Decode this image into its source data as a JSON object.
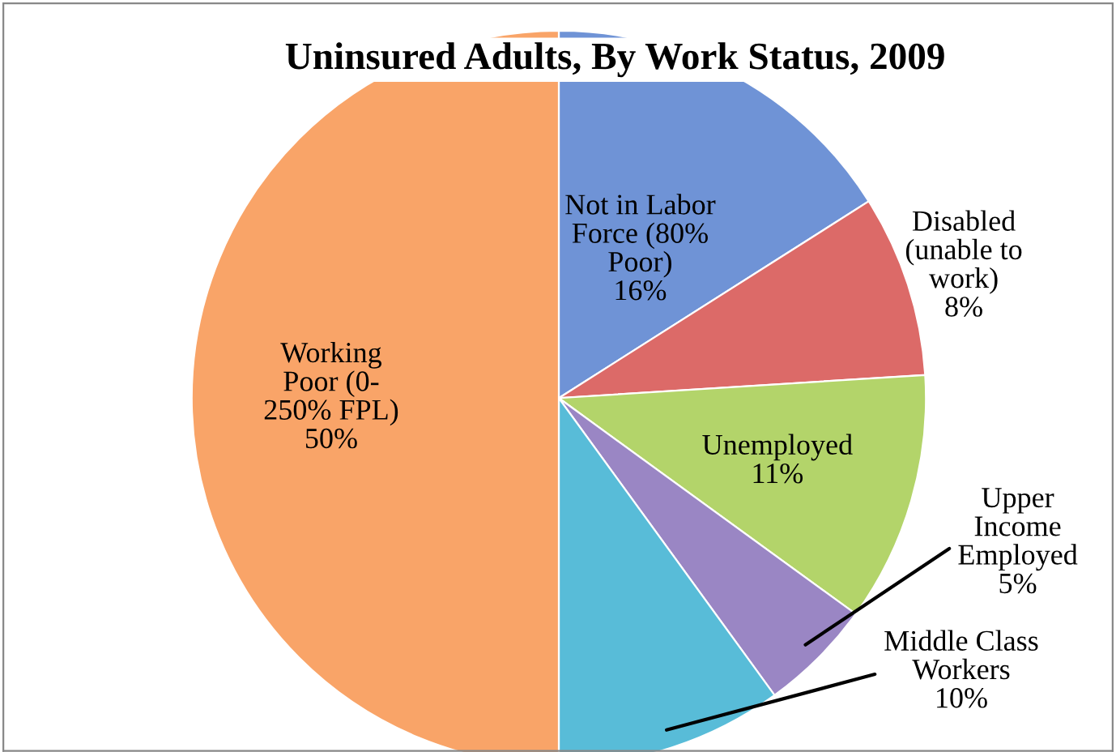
{
  "chart_data": {
    "type": "pie",
    "title": "Uninsured Adults, By Work Status, 2009",
    "categories": [
      "Not in Labor\nForce (80%\nPoor)",
      "Disabled\n(unable to\nwork)",
      "Unemployed",
      "Upper\nIncome\nEmployed",
      "Middle Class\nWorkers",
      "Working\nPoor (0-\n250% FPL)"
    ],
    "values": [
      16,
      8,
      11,
      5,
      10,
      50
    ],
    "value_labels": [
      "16%",
      "8%",
      "11%",
      "5%",
      "10%",
      "50%"
    ],
    "colors": [
      "#6f93d6",
      "#dc6a68",
      "#b3d46a",
      "#9a86c4",
      "#58bcd8",
      "#f9a468"
    ]
  }
}
